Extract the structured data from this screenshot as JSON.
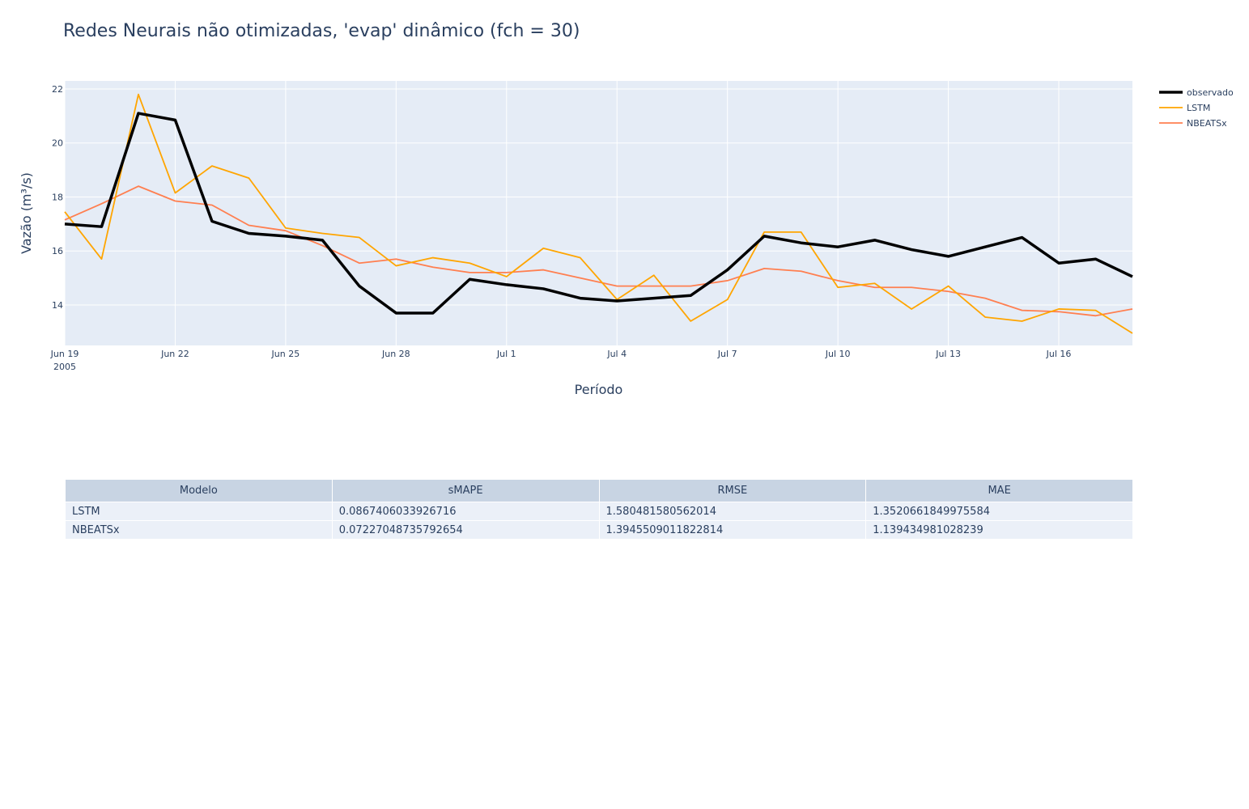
{
  "title": "Redes Neurais não otimizadas, 'evap' dinâmico (fch = 30)",
  "chart_data": {
    "type": "line",
    "title": "Redes Neurais não otimizadas, 'evap' dinâmico (fch = 30)",
    "xlabel": "Período",
    "ylabel": "Vazão (m³/s)",
    "ylim": [
      12.5,
      22.3
    ],
    "yticks": [
      14,
      16,
      18,
      20,
      22
    ],
    "xticks": [
      {
        "label": "Jun 19",
        "sublabel": "2005",
        "day": 0
      },
      {
        "label": "Jun 22",
        "day": 3
      },
      {
        "label": "Jun 25",
        "day": 6
      },
      {
        "label": "Jun 28",
        "day": 9
      },
      {
        "label": "Jul 1",
        "day": 12
      },
      {
        "label": "Jul 4",
        "day": 15
      },
      {
        "label": "Jul 7",
        "day": 18
      },
      {
        "label": "Jul 10",
        "day": 21
      },
      {
        "label": "Jul 13",
        "day": 24
      },
      {
        "label": "Jul 16",
        "day": 27
      }
    ],
    "x_start_date": "2005-06-19",
    "x_days": [
      0,
      1,
      2,
      3,
      4,
      5,
      6,
      7,
      8,
      9,
      10,
      11,
      12,
      13,
      14,
      15,
      16,
      17,
      18,
      19,
      20,
      21,
      22,
      23,
      24,
      25,
      26,
      27,
      28,
      29
    ],
    "grid": true,
    "legend_position": "top-right",
    "series": [
      {
        "name": "observado",
        "color": "#000000",
        "width": 3.5,
        "values": [
          17.0,
          16.9,
          21.1,
          20.85,
          17.1,
          16.65,
          16.55,
          16.4,
          14.7,
          13.7,
          13.7,
          14.95,
          14.75,
          14.6,
          14.25,
          14.15,
          14.25,
          14.35,
          15.3,
          16.55,
          16.3,
          16.15,
          16.4,
          16.05,
          15.8,
          16.15,
          16.5,
          15.55,
          15.7,
          15.05
        ]
      },
      {
        "name": "LSTM",
        "color": "#ffa500",
        "width": 1.8,
        "values": [
          17.45,
          15.7,
          21.8,
          18.15,
          19.15,
          18.7,
          16.85,
          16.65,
          16.5,
          15.45,
          15.75,
          15.55,
          15.05,
          16.1,
          15.75,
          14.2,
          15.1,
          13.4,
          14.2,
          16.7,
          16.7,
          14.65,
          14.8,
          13.85,
          14.7,
          13.55,
          13.4,
          13.85,
          13.8,
          12.95
        ]
      },
      {
        "name": "NBEATSx",
        "color": "#ff7f50",
        "width": 1.8,
        "values": [
          17.15,
          17.75,
          18.4,
          17.85,
          17.7,
          16.95,
          16.75,
          16.2,
          15.55,
          15.7,
          15.4,
          15.2,
          15.2,
          15.3,
          15.0,
          14.7,
          14.7,
          14.7,
          14.9,
          15.35,
          15.25,
          14.9,
          14.65,
          14.65,
          14.5,
          14.25,
          13.8,
          13.75,
          13.6,
          13.85
        ]
      }
    ]
  },
  "table": {
    "headers": [
      "Modelo",
      "sMAPE",
      "RMSE",
      "MAE"
    ],
    "rows": [
      [
        "LSTM",
        "0.0867406033926716",
        "1.580481580562014",
        "1.3520661849975584"
      ],
      [
        "NBEATSx",
        "0.07227048735792654",
        "1.3945509011822814",
        "1.139434981028239"
      ]
    ]
  }
}
